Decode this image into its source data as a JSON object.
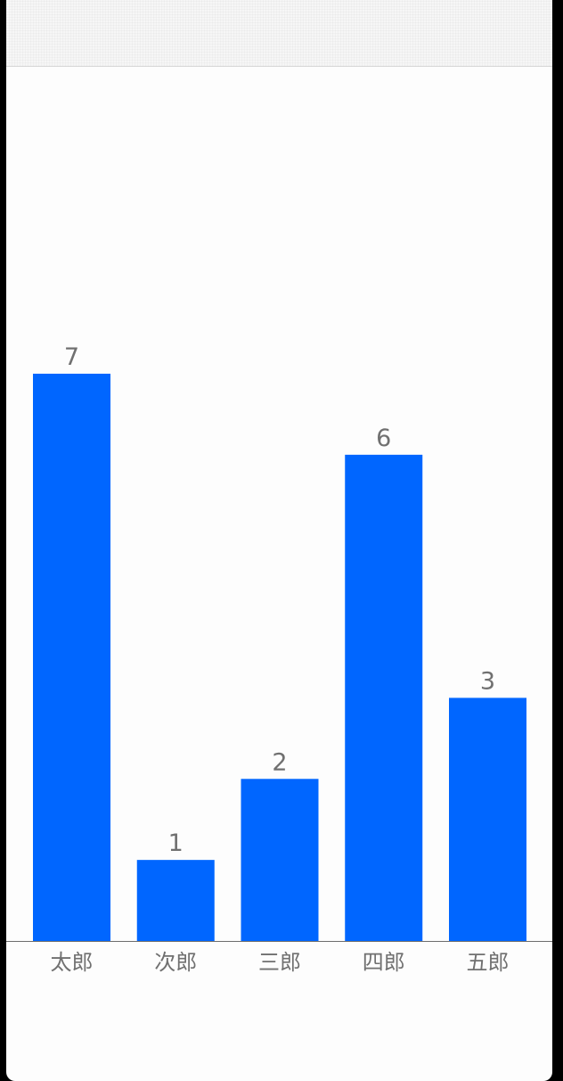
{
  "colors": {
    "bar": "#0066ff",
    "label": "#707070",
    "baseline": "#6d6d6d",
    "background": "#fdfdfd"
  },
  "chart_data": {
    "type": "bar",
    "categories": [
      "太郎",
      "次郎",
      "三郎",
      "四郎",
      "五郎"
    ],
    "values": [
      7,
      1,
      2,
      6,
      3
    ],
    "ylim": [
      0,
      7
    ],
    "grid": false,
    "data_labels": true,
    "title": "",
    "xlabel": "",
    "ylabel": ""
  }
}
